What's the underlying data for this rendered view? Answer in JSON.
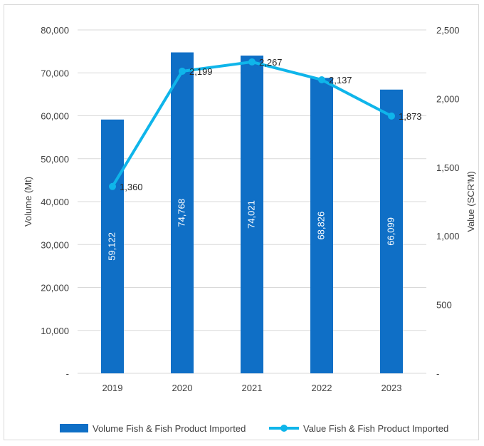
{
  "chart_data": {
    "type": "bar",
    "categories": [
      "2019",
      "2020",
      "2021",
      "2022",
      "2023"
    ],
    "series": [
      {
        "name": "Volume Fish & Fish Product Imported",
        "type": "bar",
        "axis": "left",
        "color": "#0f6fc6",
        "values": [
          59122,
          74768,
          74021,
          68826,
          66099
        ],
        "labels": [
          "59,122",
          "74,768",
          "74,021",
          "68,826",
          "66,099"
        ]
      },
      {
        "name": "Value Fish & Fish Product Imported",
        "type": "line",
        "axis": "right",
        "color": "#0fb5ea",
        "values": [
          1360,
          2199,
          2267,
          2137,
          1873
        ],
        "labels": [
          "1,360",
          "2,199",
          "2,267",
          "2,137",
          "1,873"
        ]
      }
    ],
    "ylabel": "Volume (Mt)",
    "y2label": "Value (SCR'M)",
    "ylim": [
      0,
      80000
    ],
    "y2lim": [
      0,
      2500
    ],
    "y_ticks": [
      "-",
      "10,000",
      "20,000",
      "30,000",
      "40,000",
      "50,000",
      "60,000",
      "70,000",
      "80,000"
    ],
    "y2_ticks": [
      "-",
      "500",
      "1,000",
      "1,500",
      "2,000",
      "2,500"
    ],
    "grid": true,
    "legend": "bottom"
  }
}
